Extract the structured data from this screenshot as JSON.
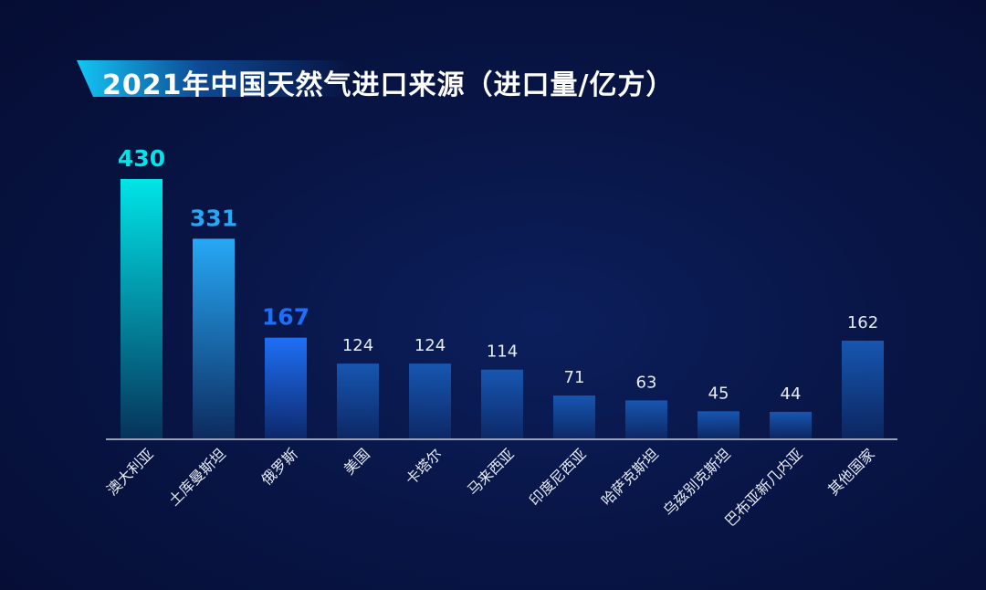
{
  "title": "2021年中国天然气进口来源（进口量/亿方）",
  "colors": {
    "background": "#07123f",
    "rank1": "#00e5e8",
    "rank2": "#27a8f5",
    "rank3": "#1f6ff5",
    "others": "#1756b0",
    "axis": "#c7cfe0",
    "label": "#e6ebf5"
  },
  "chart_data": {
    "type": "bar",
    "title": "2021年中国天然气进口来源（进口量/亿方）",
    "categories": [
      "澳大利亚",
      "土库曼斯坦",
      "俄罗斯",
      "美国",
      "卡塔尔",
      "马来西亚",
      "印度尼西亚",
      "哈萨克斯坦",
      "乌兹别克斯坦",
      "巴布亚新几内亚",
      "其他国家"
    ],
    "values": [
      430,
      331,
      167,
      124,
      124,
      114,
      71,
      63,
      45,
      44,
      162
    ],
    "value_labels": [
      "430",
      "331",
      "167",
      "124",
      "124",
      "114",
      "71",
      "63",
      "45",
      "44",
      "162"
    ],
    "ylim": [
      0,
      430
    ],
    "grid": false,
    "legend": "none"
  }
}
